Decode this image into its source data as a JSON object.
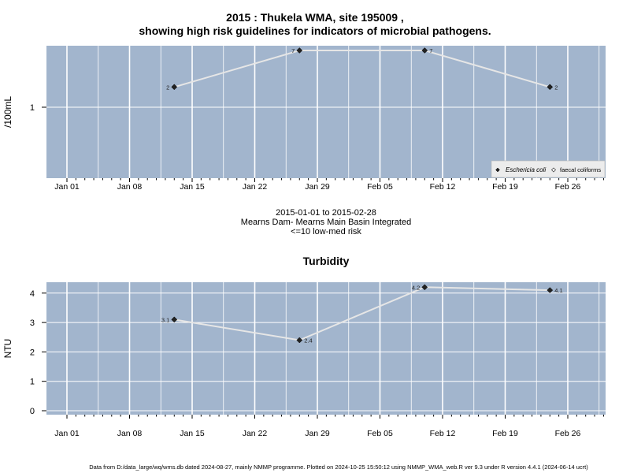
{
  "page": {
    "title_line1": "2015 : Thukela WMA, site 195009 ,",
    "title_line2": "showing high risk guidelines for indicators of microbial pathogens.",
    "caption_line1": "2015-01-01 to 2015-02-28",
    "caption_line2": "Mearns Dam- Mearns Main Basin Integrated",
    "caption_line3": "<=10 low-med risk",
    "footer": "Data from D:/data_large/wq/wms.db dated 2024-08-27, mainly NMMP programme. Plotted on 2024-10-25 15:50:12 using NMMP_WMA_web.R ver 9.3 under R version 4.4.1 (2024-06-14 ucrt)"
  },
  "colors": {
    "panel_bg": "#a2b5cd",
    "grid": "#ffffff",
    "line": "#e6e6e6",
    "point": "#222222"
  },
  "chart_data": [
    {
      "type": "line",
      "title": "",
      "xlabel": "",
      "ylabel": "/100mL",
      "y_scale": "log",
      "x_ticks": [
        "Jan 01",
        "Jan 08",
        "Jan 15",
        "Jan 22",
        "Jan 29",
        "Feb 05",
        "Feb 12",
        "Feb 19",
        "Feb 26"
      ],
      "y_ticks": [
        "1"
      ],
      "legend_position": "bottom-right",
      "series": [
        {
          "name": "Eschericia coli",
          "marker": "filled-diamond",
          "points": [
            {
              "x": "2015-01-13",
              "y": 2,
              "label": "2"
            },
            {
              "x": "2015-01-27",
              "y": 7,
              "label": "7"
            },
            {
              "x": "2015-02-10",
              "y": 7,
              "label": "7"
            },
            {
              "x": "2015-02-24",
              "y": 2,
              "label": "2"
            }
          ]
        },
        {
          "name": "faecal coliforms",
          "marker": "open-diamond",
          "points": []
        }
      ]
    },
    {
      "type": "line",
      "title": "Turbidity",
      "xlabel": "",
      "ylabel": "NTU",
      "ylim": [
        0,
        4.2
      ],
      "x_ticks": [
        "Jan 01",
        "Jan 08",
        "Jan 15",
        "Jan 22",
        "Jan 29",
        "Feb 05",
        "Feb 12",
        "Feb 19",
        "Feb 26"
      ],
      "y_ticks": [
        "0",
        "1",
        "2",
        "3",
        "4"
      ],
      "series": [
        {
          "marker": "filled-diamond",
          "points": [
            {
              "x": "2015-01-13",
              "y": 3.1,
              "label": "3.1"
            },
            {
              "x": "2015-01-27",
              "y": 2.4,
              "label": "2.4"
            },
            {
              "x": "2015-02-10",
              "y": 4.2,
              "label": "4.2"
            },
            {
              "x": "2015-02-24",
              "y": 4.1,
              "label": "4.1"
            }
          ]
        }
      ]
    }
  ]
}
